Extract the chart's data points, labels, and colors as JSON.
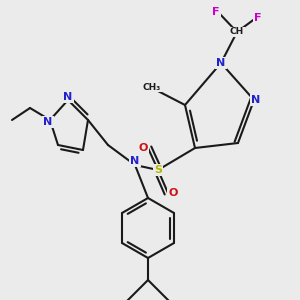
{
  "bg_color": "#ebebeb",
  "bond_color": "#1a1a1a",
  "bond_lw": 1.5,
  "dbo": 0.012,
  "atom_colors": {
    "N": "#2222cc",
    "S": "#b8b800",
    "O": "#cc1111",
    "F": "#cc00cc",
    "C": "#1a1a1a"
  },
  "fs": 8.0,
  "fs_small": 6.5
}
